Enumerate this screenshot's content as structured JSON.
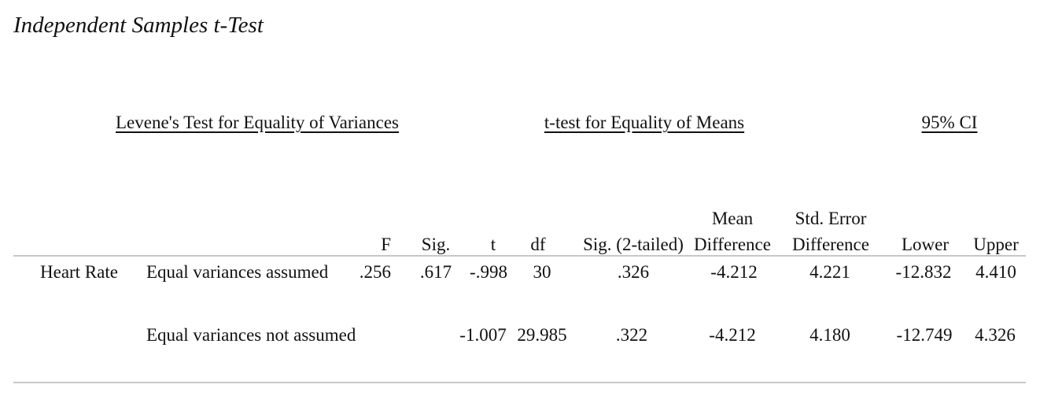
{
  "title": "Independent Samples t-Test",
  "group_headers": {
    "levene": "Levene's Test for Equality of Variances",
    "ttest": "t-test for Equality of Means",
    "ci": "95% CI"
  },
  "columns": {
    "F": "F",
    "sig": "Sig.",
    "t": "t",
    "df": "df",
    "sig2": "Sig. (2-tailed)",
    "mean_diff_1": "Mean",
    "mean_diff_2": "Difference",
    "se_diff_1": "Std. Error",
    "se_diff_2": "Difference",
    "lower": "Lower",
    "upper": "Upper"
  },
  "variable": "Heart Rate",
  "rows": [
    {
      "label": "Equal variances assumed",
      "F": ".256",
      "sig": ".617",
      "t": "-.998",
      "df": "30",
      "sig2": ".326",
      "mean_diff": "-4.212",
      "se_diff": "4.221",
      "lower": "-12.832",
      "upper": "4.410"
    },
    {
      "label": "Equal variances not assumed",
      "F": "",
      "sig": "",
      "t": "-1.007",
      "df": "29.985",
      "sig2": ".322",
      "mean_diff": "-4.212",
      "se_diff": "4.180",
      "lower": "-12.749",
      "upper": "4.326"
    }
  ]
}
